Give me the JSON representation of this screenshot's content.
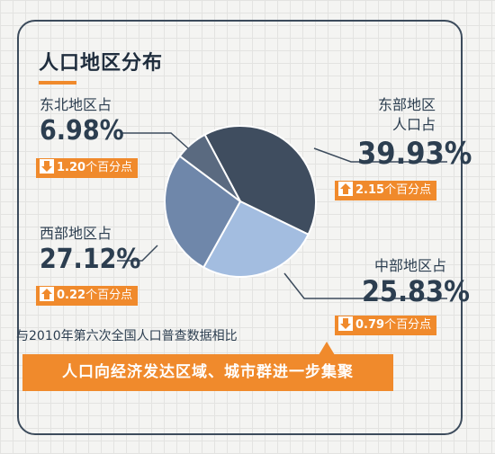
{
  "title": "人口地区分布",
  "compare_note": "与2010年第六次全国人口普查数据相比",
  "callout": "人口向经济发达区域、城市群进一步集聚",
  "colors": {
    "accent": "#f08a2c",
    "text": "#2c3e50",
    "east": "#3f4d5f",
    "central": "#a3bde0",
    "west": "#6f87aa",
    "northeast": "#5a6a80"
  },
  "regions": {
    "northeast": {
      "label": "东北地区占",
      "value": "6.98%",
      "change": "1.20",
      "unit": "个百分点",
      "direction": "down"
    },
    "east": {
      "label_line1": "东部地区",
      "label_line2": "人口占",
      "value": "39.93%",
      "change": "2.15",
      "unit": "个百分点",
      "direction": "up"
    },
    "west": {
      "label": "西部地区占",
      "value": "27.12%",
      "change": "0.22",
      "unit": "个百分点",
      "direction": "up"
    },
    "central": {
      "label": "中部地区占",
      "value": "25.83%",
      "change": "0.79",
      "unit": "个百分点",
      "direction": "down"
    }
  },
  "chart_data": {
    "type": "pie",
    "title": "人口地区分布",
    "categories": [
      "东部地区",
      "中部地区",
      "西部地区",
      "东北地区"
    ],
    "values": [
      39.93,
      25.83,
      27.12,
      6.98
    ],
    "change_vs_2010": [
      2.15,
      -0.79,
      0.22,
      -1.2
    ],
    "change_unit": "个百分点",
    "colors": [
      "#3f4d5f",
      "#a3bde0",
      "#6f87aa",
      "#5a6a80"
    ]
  }
}
